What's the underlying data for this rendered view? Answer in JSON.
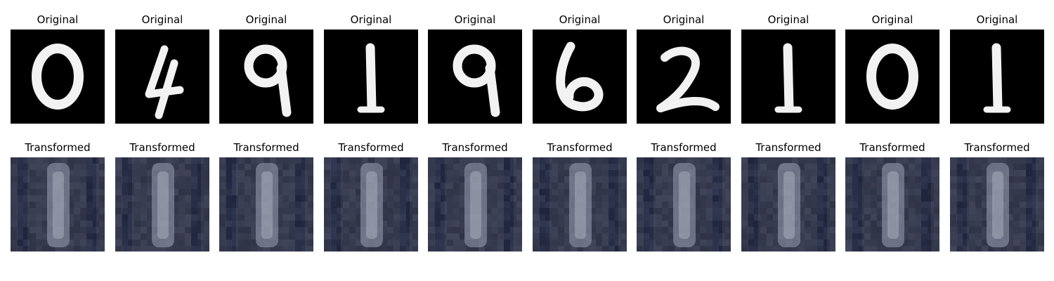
{
  "figure": {
    "rows": [
      {
        "key": "original",
        "cells": [
          {
            "title": "Original",
            "digit": "0"
          },
          {
            "title": "Original",
            "digit": "4"
          },
          {
            "title": "Original",
            "digit": "9"
          },
          {
            "title": "Original",
            "digit": "1"
          },
          {
            "title": "Original",
            "digit": "9"
          },
          {
            "title": "Original",
            "digit": "6"
          },
          {
            "title": "Original",
            "digit": "2"
          },
          {
            "title": "Original",
            "digit": "1"
          },
          {
            "title": "Original",
            "digit": "0"
          },
          {
            "title": "Original",
            "digit": "1"
          }
        ],
        "colors": {
          "background": "#000000",
          "stroke": "#f2f2f2"
        }
      },
      {
        "key": "transformed",
        "cells": [
          {
            "title": "Transformed"
          },
          {
            "title": "Transformed"
          },
          {
            "title": "Transformed"
          },
          {
            "title": "Transformed"
          },
          {
            "title": "Transformed"
          },
          {
            "title": "Transformed"
          },
          {
            "title": "Transformed"
          },
          {
            "title": "Transformed"
          },
          {
            "title": "Transformed"
          },
          {
            "title": "Transformed"
          }
        ],
        "colors": {
          "background": "#2a2d3f",
          "dark_band": "#141a33",
          "glyph": "#9aa0b4",
          "highlight": "#c9cad6"
        }
      }
    ]
  }
}
